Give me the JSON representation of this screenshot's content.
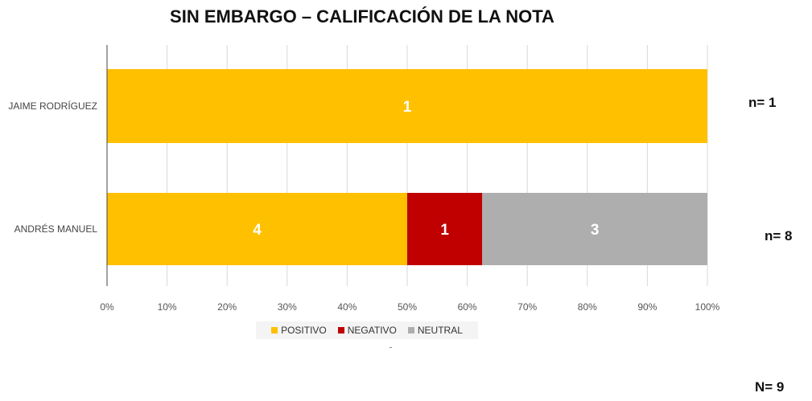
{
  "chart_data": {
    "type": "bar",
    "orientation": "horizontal",
    "stacked": "percent",
    "title": "SIN EMBARGO – CALIFICACIÓN DE LA NOTA",
    "categories": [
      "JAIME RODRÍGUEZ",
      "ANDRÉS MANUEL"
    ],
    "series": [
      {
        "name": "POSITIVO",
        "color": "#FFC000",
        "values": [
          1,
          4
        ]
      },
      {
        "name": "NEGATIVO",
        "color": "#C00000",
        "values": [
          0,
          1
        ]
      },
      {
        "name": "NEUTRAL",
        "color": "#AEAEAE",
        "values": [
          0,
          3
        ]
      }
    ],
    "xlim": [
      0,
      100
    ],
    "xticks": [
      "0%",
      "10%",
      "20%",
      "30%",
      "40%",
      "50%",
      "60%",
      "70%",
      "80%",
      "90%",
      "100%"
    ],
    "grid": true,
    "legend": "bottom"
  },
  "notes": {
    "n_jaime": "n= 1",
    "n_andres": "n= 8",
    "n_total": "N= 9"
  }
}
